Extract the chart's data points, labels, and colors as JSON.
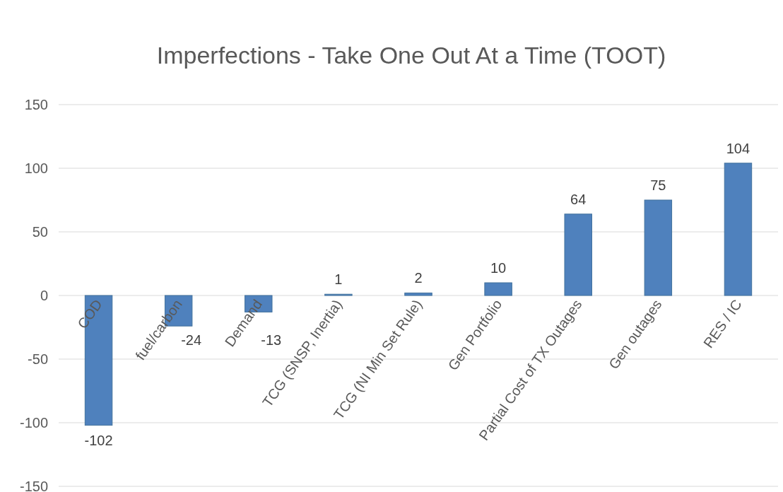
{
  "chart_data": {
    "type": "bar",
    "title": "Imperfections - Take One Out At a Time (TOOT)",
    "categories": [
      "COD",
      "fuel/carbon",
      "Demand",
      "TCG (SNSP, Inertia)",
      "TCG (NI Min Set Rule)",
      "Gen Portfolio",
      "Partial Cost of TX Outages",
      "Gen outages",
      "RES / IC"
    ],
    "values": [
      -102,
      -24,
      -13,
      1,
      2,
      10,
      64,
      75,
      104
    ],
    "color": "#4f81bd",
    "ylim": [
      -150,
      150
    ],
    "yticks": [
      -150,
      -100,
      -50,
      0,
      50,
      100,
      150
    ],
    "grid": "y",
    "data_labels": true
  }
}
